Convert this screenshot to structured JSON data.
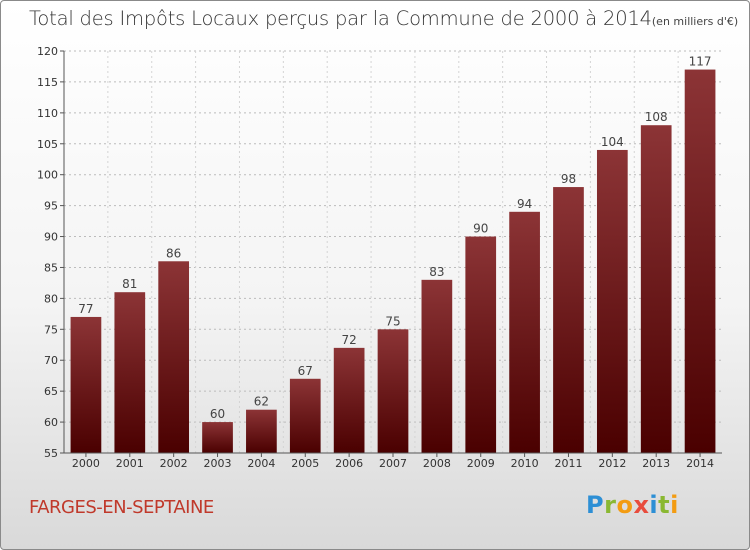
{
  "title": "Total des Impôts Locaux perçus par la Commune de 2000 à 2014",
  "unit": "(en milliers d'€)",
  "commune": "FARGES-EN-SEPTAINE",
  "logo": {
    "letters": [
      "P",
      "r",
      "o",
      "x",
      "i",
      "t",
      "i"
    ],
    "colors": [
      "#2d8fd5",
      "#8ab832",
      "#f39c12",
      "#e84c3d",
      "#2d8fd5",
      "#8ab832",
      "#f39c12"
    ]
  },
  "colors": {
    "bar_top": "#8c3436",
    "bar_bottom": "#4a0000",
    "text": "#333333"
  },
  "chart_data": {
    "type": "bar",
    "categories": [
      "2000",
      "2001",
      "2002",
      "2003",
      "2004",
      "2005",
      "2006",
      "2007",
      "2008",
      "2009",
      "2010",
      "2011",
      "2012",
      "2013",
      "2014"
    ],
    "values": [
      77,
      81,
      86,
      60,
      62,
      67,
      72,
      75,
      83,
      90,
      94,
      98,
      104,
      108,
      117
    ],
    "ylim": [
      55,
      120
    ],
    "yticks": [
      55,
      60,
      65,
      70,
      75,
      80,
      85,
      90,
      95,
      100,
      105,
      110,
      115,
      120
    ],
    "title": "Total des Impôts Locaux perçus par la Commune de 2000 à 2014",
    "xlabel": "",
    "ylabel": ""
  }
}
